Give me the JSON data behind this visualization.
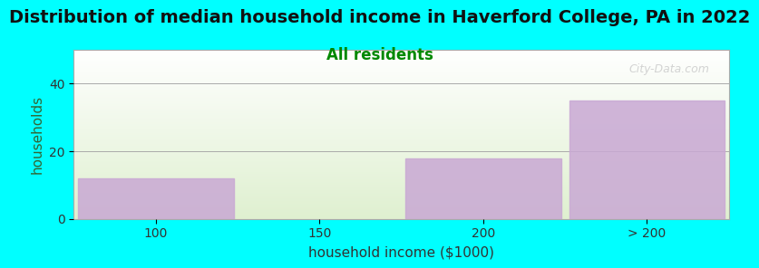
{
  "title": "Distribution of median household income in Haverford College, PA in 2022",
  "subtitle": "All residents",
  "xlabel": "household income ($1000)",
  "ylabel": "households",
  "bar_labels": [
    "100",
    "150",
    "200",
    "> 200"
  ],
  "bar_values": [
    12,
    0,
    18,
    35
  ],
  "bar_color": "#c9a8d4",
  "background_color": "#00FFFF",
  "plot_bg_top": "#ffffff",
  "plot_bg_bottom": "#dff0d0",
  "ylim": [
    0,
    50
  ],
  "yticks": [
    0,
    20,
    40
  ],
  "title_fontsize": 14,
  "subtitle_fontsize": 12,
  "subtitle_color": "#008800",
  "axis_label_fontsize": 11,
  "watermark": "City-Data.com"
}
